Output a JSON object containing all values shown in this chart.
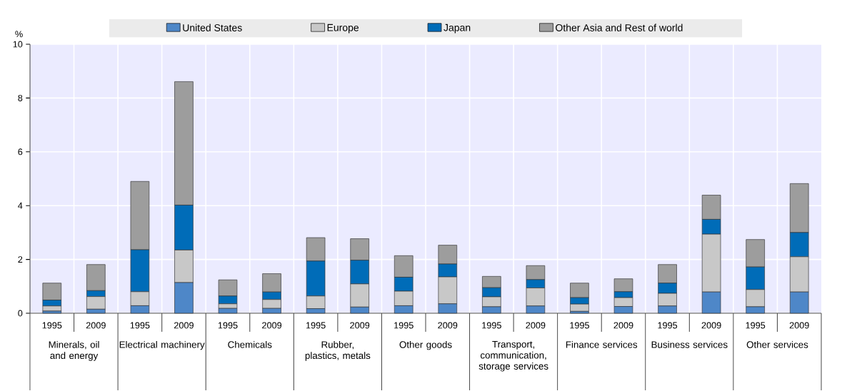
{
  "chart_data": {
    "type": "bar",
    "stacked": true,
    "ylabel": "%",
    "categories": [
      "1995",
      "2009",
      "1995",
      "2009",
      "1995",
      "2009",
      "1995",
      "2009",
      "1995",
      "2009",
      "1995",
      "2009",
      "1995",
      "2009",
      "1995",
      "2009",
      "1995",
      "2009"
    ],
    "annotations": [
      "Minerals, oil and energy",
      "Electrical machinery",
      "Chemicals",
      "Rubber, plastics, metals",
      "Other goods",
      "Transport, communication, storage services",
      "Finance services",
      "Business services",
      "Other services"
    ],
    "series": [
      {
        "name": "United States",
        "color": "#4e87c8",
        "values": [
          0.08,
          0.15,
          0.28,
          1.14,
          0.18,
          0.18,
          0.17,
          0.23,
          0.28,
          0.35,
          0.24,
          0.27,
          0.07,
          0.25,
          0.27,
          0.79,
          0.24,
          0.79
        ]
      },
      {
        "name": "Europe",
        "color": "#c8c8c8",
        "values": [
          0.19,
          0.47,
          0.52,
          1.21,
          0.17,
          0.33,
          0.47,
          0.86,
          0.54,
          1.0,
          0.37,
          0.67,
          0.27,
          0.33,
          0.47,
          2.15,
          0.64,
          1.31
        ]
      },
      {
        "name": "Japan",
        "color": "#006cb8",
        "values": [
          0.22,
          0.22,
          1.56,
          1.67,
          0.29,
          0.28,
          1.3,
          0.88,
          0.52,
          0.48,
          0.34,
          0.31,
          0.24,
          0.22,
          0.38,
          0.55,
          0.84,
          0.9
        ]
      },
      {
        "name": "Other Asia and Rest of world",
        "color": "#9d9d9d",
        "values": [
          0.63,
          0.97,
          2.54,
          4.59,
          0.6,
          0.68,
          0.87,
          0.8,
          0.8,
          0.7,
          0.42,
          0.52,
          0.54,
          0.48,
          0.69,
          0.9,
          1.02,
          1.82
        ]
      }
    ],
    "ylim": [
      0,
      10
    ],
    "yticks": [
      0,
      2,
      4,
      6,
      8,
      10
    ],
    "grid": true,
    "legend": "top"
  }
}
